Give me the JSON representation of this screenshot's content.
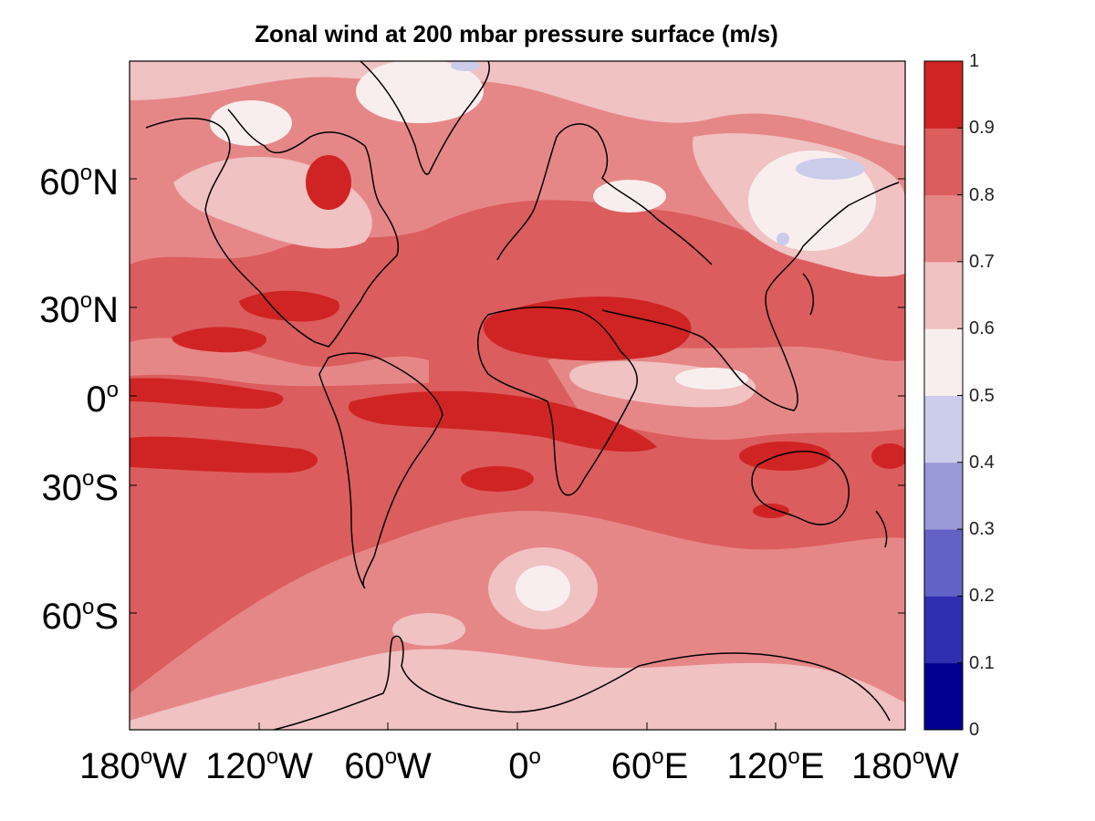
{
  "title": "Zonal wind at 200 mbar pressure surface (m/s)",
  "lat_ticks": [
    {
      "deg": "60",
      "sup": "o",
      "hem": "N"
    },
    {
      "deg": "30",
      "sup": "o",
      "hem": "N"
    },
    {
      "deg": "0",
      "sup": "o",
      "hem": ""
    },
    {
      "deg": "30",
      "sup": "o",
      "hem": "S"
    },
    {
      "deg": "60",
      "sup": "o",
      "hem": "S"
    }
  ],
  "lon_ticks": [
    {
      "deg": "180",
      "sup": "o",
      "hem": "W"
    },
    {
      "deg": "120",
      "sup": "o",
      "hem": "W"
    },
    {
      "deg": "60",
      "sup": "o",
      "hem": "W"
    },
    {
      "deg": "0",
      "sup": "o",
      "hem": ""
    },
    {
      "deg": "60",
      "sup": "o",
      "hem": "E"
    },
    {
      "deg": "120",
      "sup": "o",
      "hem": "E"
    },
    {
      "deg": "180",
      "sup": "o",
      "hem": "W"
    }
  ],
  "colorbar": {
    "levels": [
      "0",
      "0.1",
      "0.2",
      "0.3",
      "0.4",
      "0.5",
      "0.6",
      "0.7",
      "0.8",
      "0.9",
      "1"
    ],
    "colors": [
      "#00008f",
      "#2f2fb1",
      "#6262c6",
      "#9a9ad9",
      "#cbcbea",
      "#f9eeee",
      "#f0c2c2",
      "#e68787",
      "#dc5d5d",
      "#d02424"
    ]
  }
}
